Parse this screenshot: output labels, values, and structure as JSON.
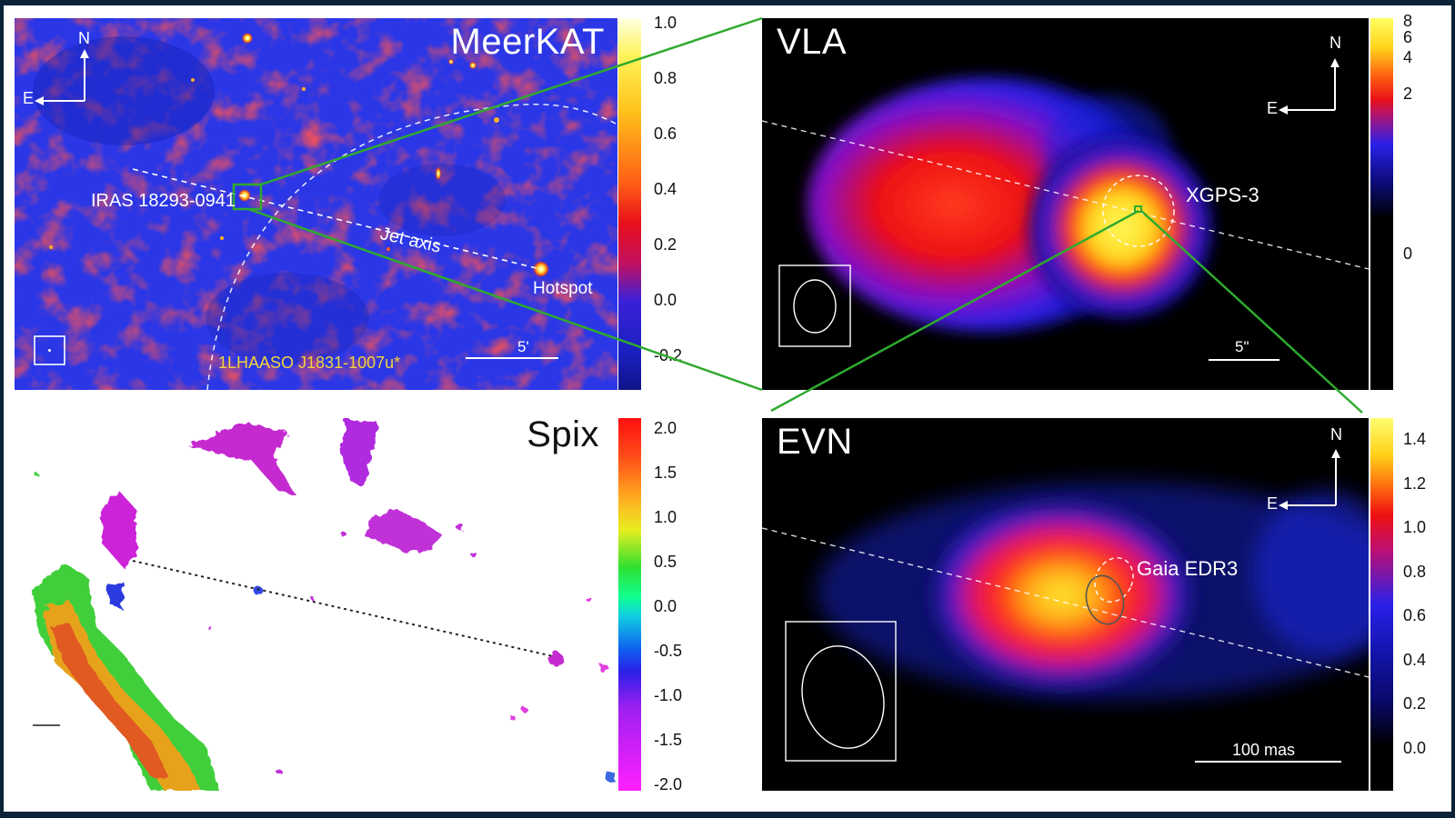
{
  "panels": {
    "meerkat": {
      "title": "MeerKAT",
      "labels": {
        "source": "IRAS 18293-0941",
        "jet_axis": "Jet axis",
        "hotspot": "Hotspot",
        "lhaaso": "1LHAASO J1831-1007u*",
        "scale": "5'",
        "north": "N",
        "east": "E"
      },
      "colorbar_ticks": [
        "1.0",
        "0.8",
        "0.6",
        "0.4",
        "0.2",
        "0.0",
        "-0.2"
      ]
    },
    "vla": {
      "title": "VLA",
      "labels": {
        "source": "XGPS-3",
        "scale": "5\"",
        "north": "N",
        "east": "E"
      },
      "colorbar_ticks": [
        "8",
        "6",
        "4",
        "2",
        "0"
      ]
    },
    "spix": {
      "title": "Spix",
      "colorbar_ticks": [
        "2.0",
        "1.5",
        "1.0",
        "0.5",
        "0.0",
        "-0.5",
        "-1.0",
        "-1.5",
        "-2.0"
      ]
    },
    "evn": {
      "title": "EVN",
      "labels": {
        "source": "Gaia EDR3",
        "scale": "100 mas",
        "north": "N",
        "east": "E"
      },
      "colorbar_ticks": [
        "1.4",
        "1.2",
        "1.0",
        "0.8",
        "0.6",
        "0.4",
        "0.2",
        "0.0"
      ]
    }
  },
  "colors": {
    "zoom_lines": "#2eaa2e",
    "lhaaso_label": "#f2d23c",
    "frame_background": "#0c2238"
  }
}
